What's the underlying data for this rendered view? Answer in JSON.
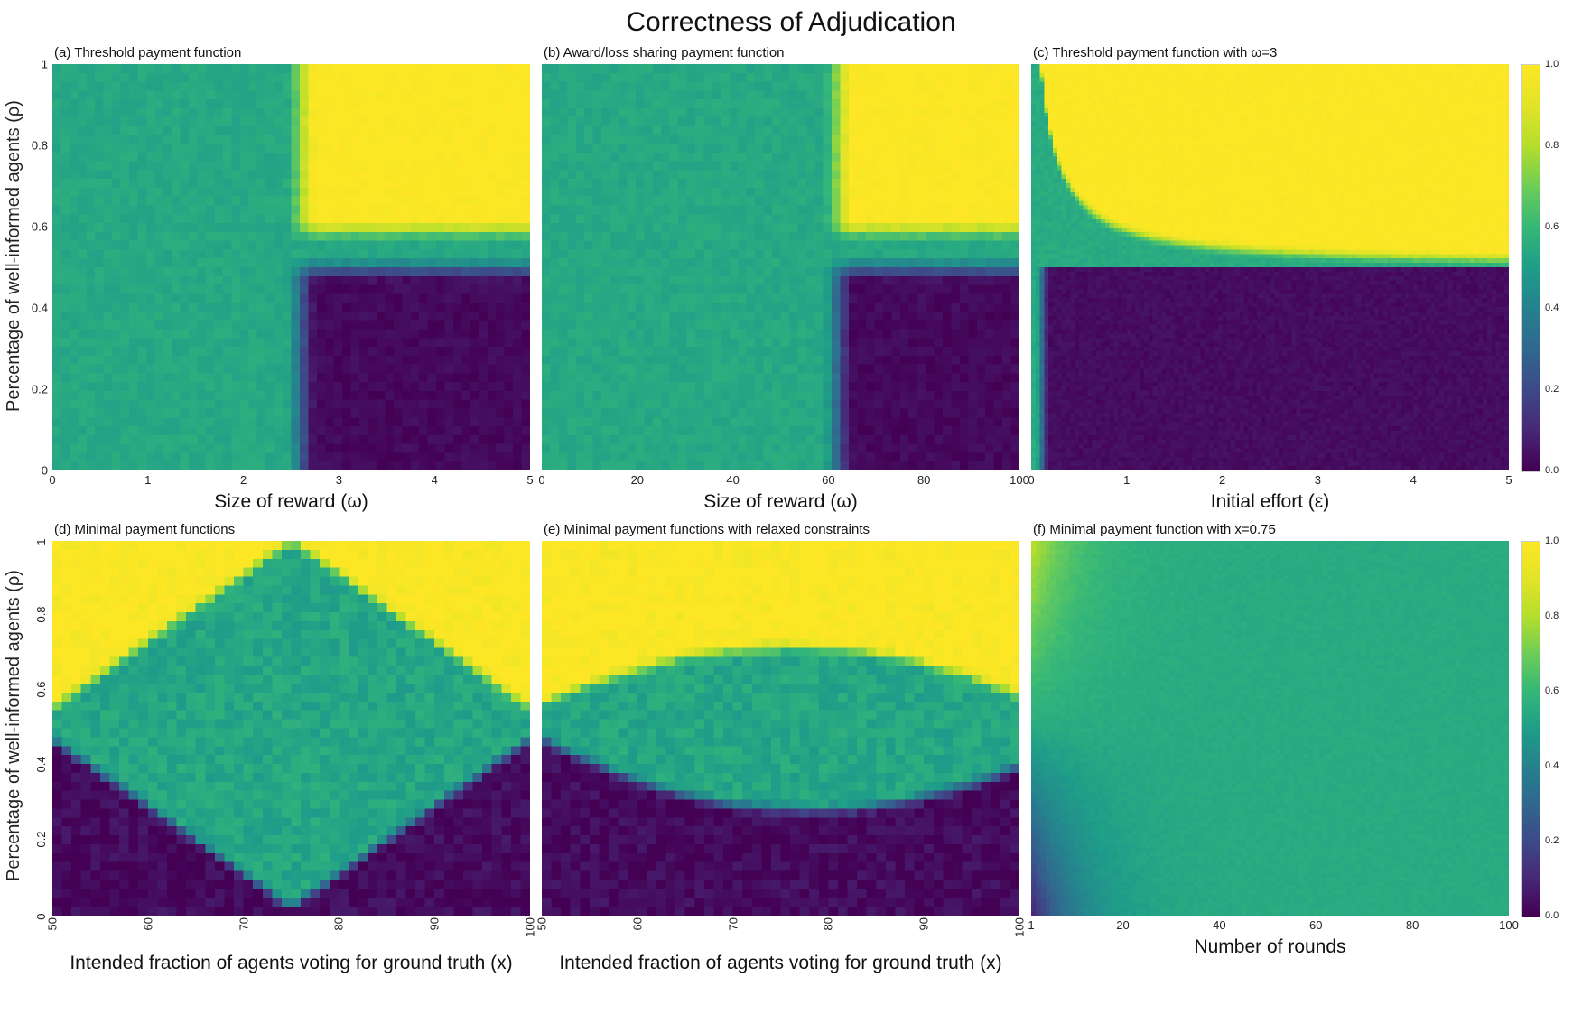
{
  "title": "Correctness of Adjudication",
  "ylabel": "Percentage of well-informed agents (ρ)",
  "colorbar": {
    "ticks": [
      "1.0",
      "0.8",
      "0.6",
      "0.4",
      "0.2",
      "0.0"
    ],
    "colormap": "viridis",
    "range": [
      0.0,
      1.0
    ]
  },
  "colors": {
    "viridis_low": "#440154",
    "viridis_mid": "#1f9e89",
    "viridis_high": "#fde725",
    "background": "#ffffff"
  },
  "chart_data": [
    {
      "id": "a",
      "type": "heatmap",
      "title": "(a) Threshold payment function",
      "xlabel": "Size of reward (ω)",
      "ylabel": "Percentage of well-informed agents (ρ)",
      "x_range": [
        0,
        5
      ],
      "y_range": [
        0,
        1
      ],
      "x_ticks": [
        "0",
        "1",
        "2",
        "3",
        "4",
        "5"
      ],
      "x_tick_values": [
        0,
        1,
        2,
        3,
        4,
        5
      ],
      "y_ticks": [
        "0",
        "0.2",
        "0.4",
        "0.6",
        "0.8",
        "1"
      ],
      "y_tick_values": [
        0,
        0.2,
        0.4,
        0.6,
        0.8,
        1
      ],
      "value_range": [
        0,
        1
      ],
      "grid": [
        56,
        46
      ],
      "pattern": {
        "type": "split_threshold",
        "description": "Uniform teal (~0.54) correctness for reward ω below ~2.5; for ω above ~2.7 the map splits at ρ≈0.5: yellow (~1.0) for ρ>0.56, dark purple (~0.0) for ρ<0.46, thin teal band between.",
        "x_threshold": 2.6,
        "x_width": 0.35,
        "teal": 0.54,
        "low": 0.02,
        "high": 1.0,
        "y_low_edge": 0.46,
        "y_low_width": 0.07,
        "y_high_edge": 0.555,
        "y_high_width": 0.07,
        "noise": 0.025
      }
    },
    {
      "id": "b",
      "type": "heatmap",
      "title": "(b) Award/loss sharing payment function",
      "xlabel": "Size of reward (ω)",
      "ylabel": "Percentage of well-informed agents (ρ)",
      "x_range": [
        0,
        100
      ],
      "y_range": [
        0,
        1
      ],
      "x_ticks": [
        "0",
        "20",
        "40",
        "60",
        "80",
        "100"
      ],
      "x_tick_values": [
        0,
        20,
        40,
        60,
        80,
        100
      ],
      "value_range": [
        0,
        1
      ],
      "grid": [
        56,
        46
      ],
      "pattern": {
        "type": "split_threshold",
        "description": "Teal (~0.54) for reward ω below ~60; above ~63 splits at ρ≈0.5 into yellow (ρ>0.56) and dark purple (ρ<0.46) with thin teal band between.",
        "x_threshold": 62,
        "x_width": 7,
        "teal": 0.54,
        "low": 0.02,
        "high": 1.0,
        "y_low_edge": 0.46,
        "y_low_width": 0.07,
        "y_high_edge": 0.555,
        "y_high_width": 0.07,
        "noise": 0.025
      }
    },
    {
      "id": "c",
      "type": "heatmap",
      "title": "(c) Threshold payment function with ω=3",
      "xlabel": "Initial effort (ε)",
      "ylabel": "Percentage of well-informed agents (ρ)",
      "x_range": [
        0,
        5
      ],
      "y_range": [
        0,
        1
      ],
      "x_ticks": [
        "0",
        "1",
        "2",
        "3",
        "4",
        "5"
      ],
      "x_tick_values": [
        0,
        1,
        2,
        3,
        4,
        5
      ],
      "value_range": [
        0,
        1
      ],
      "grid": [
        110,
        92
      ],
      "pattern": {
        "type": "curved_threshold",
        "description": "Thin teal column at ε≈0; yellow region above a hyperbolic boundary ρ≈0.5+0.1/(ε+0.1) (boundary drops toward ρ≈0.5 as ε grows); dark purple for ρ<0.5 once ε>~0.2.",
        "teal": 0.55,
        "low": 0.03,
        "high": 1.0,
        "curve_c": 0.1,
        "curve_d": 0.1,
        "edge_width": 0.045,
        "x_left": 0.12,
        "x_left_width": 0.15,
        "noise": 0.02
      }
    },
    {
      "id": "d",
      "type": "heatmap",
      "title": "(d) Minimal payment functions",
      "xlabel": "Intended fraction of agents voting for ground truth (x)",
      "ylabel": "Percentage of well-informed agents (ρ)",
      "x_range": [
        50,
        100
      ],
      "y_range": [
        0,
        1
      ],
      "x_ticks": [
        "50",
        "60",
        "70",
        "80",
        "90",
        "100"
      ],
      "x_tick_values": [
        50,
        60,
        70,
        80,
        90,
        100
      ],
      "x_ticks_rotated": true,
      "y_ticks": [
        "0",
        "0.2",
        "0.4",
        "0.6",
        "0.8",
        "1"
      ],
      "y_tick_values": [
        0,
        0.2,
        0.4,
        0.6,
        0.8,
        1
      ],
      "y_ticks_rotated": true,
      "value_range": [
        0,
        1
      ],
      "grid": [
        50,
        42
      ],
      "pattern": {
        "type": "diamond",
        "description": "Diamond-shaped teal (~0.53) region centered at x≈75, ρ≈0.5 reaching top and bottom at x≈75; yellow (~1.0) wedges in upper-left and upper-right corners, dark purple (~0.0) wedges in lower-left and lower-right corners.",
        "center_x": 75,
        "half_width": 25,
        "teal": 0.53,
        "low": 0.02,
        "high": 1.0,
        "y_low_edge": 0.47,
        "y_high_edge": 0.555,
        "edge_width": 0.05,
        "noise": 0.045
      }
    },
    {
      "id": "e",
      "type": "heatmap",
      "title": "(e) Minimal payment functions with relaxed constraints",
      "xlabel": "Intended fraction of agents voting for ground truth (x)",
      "ylabel": "Percentage of well-informed agents (ρ)",
      "x_range": [
        50,
        100
      ],
      "y_range": [
        0,
        1
      ],
      "x_ticks": [
        "50",
        "60",
        "70",
        "80",
        "90",
        "100"
      ],
      "x_tick_values": [
        50,
        60,
        70,
        80,
        90,
        100
      ],
      "x_ticks_rotated": true,
      "value_range": [
        0,
        1
      ],
      "grid": [
        50,
        42
      ],
      "pattern": {
        "type": "lens",
        "description": "Lens/ellipse shaped teal (~0.53) region around ρ≈0.5, thickest near x≈77 (from ρ≈0.28 up to ρ≈0.72); yellow band across the top, dark purple across the bottom, both pinching toward ρ≈0.5 at x=50 and x=100.",
        "center_x": 76,
        "half_width": 27,
        "bot_center_x": 78,
        "bot_half_width": 28,
        "teal": 0.53,
        "low": 0.02,
        "high": 1.0,
        "y_low_edge": 0.47,
        "y_high_edge": 0.555,
        "top_amp": 0.16,
        "bot_amp": 0.19,
        "edge_width": 0.05,
        "noise": 0.045
      }
    },
    {
      "id": "f",
      "type": "heatmap",
      "title": "(f) Minimal payment function with x=0.75",
      "xlabel": "Number of rounds",
      "ylabel": "Percentage of well-informed agents (ρ)",
      "x_range": [
        1,
        100
      ],
      "y_range": [
        0,
        1
      ],
      "x_ticks": [
        "1",
        "20",
        "40",
        "60",
        "80",
        "100"
      ],
      "x_tick_values": [
        1,
        20,
        40,
        60,
        80,
        100
      ],
      "value_range": [
        0,
        1
      ],
      "grid": [
        100,
        88
      ],
      "pattern": {
        "type": "corner_fade",
        "description": "Mostly uniform teal (~0.55); at low round counts (left edge) a yellow-green gradient in the top-left corner (~0.85 at ρ=1) and a dark purple gradient in the bottom-left corner (~0.08 at ρ=0), both fading to teal by ~20 rounds.",
        "teal": 0.55,
        "top_amp": 0.55,
        "bot_amp": 0.95,
        "tau": 9,
        "x_min": 1,
        "noise": 0.012
      }
    }
  ]
}
